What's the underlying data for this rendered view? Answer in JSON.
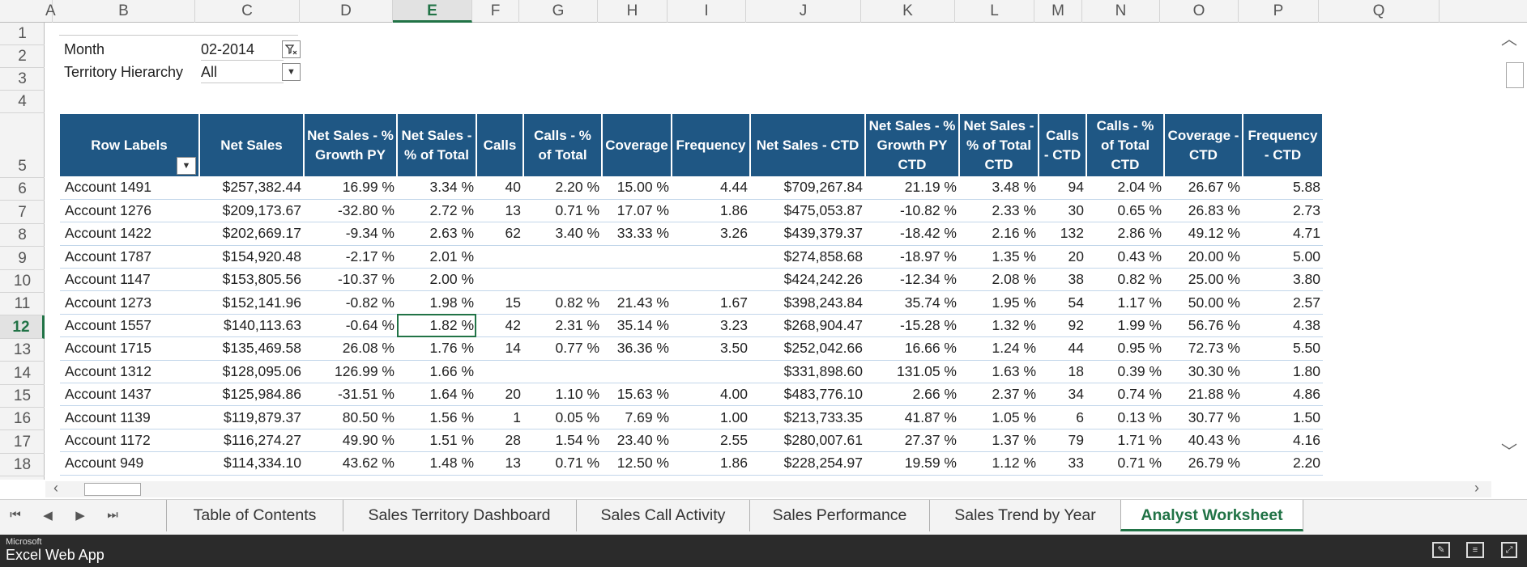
{
  "columns": [
    "A",
    "B",
    "C",
    "D",
    "E",
    "F",
    "G",
    "H",
    "I",
    "J",
    "K",
    "L",
    "M",
    "N",
    "O",
    "P",
    "Q"
  ],
  "selected_column": "E",
  "rows": [
    "1",
    "2",
    "3",
    "4",
    "5",
    "6",
    "7",
    "8",
    "9",
    "10",
    "11",
    "12",
    "13",
    "14",
    "15",
    "16",
    "17",
    "18"
  ],
  "selected_row": "12",
  "filters": [
    {
      "label": "Month",
      "value": "02-2014",
      "button_icon": "filter-funnel-icon"
    },
    {
      "label": "Territory Hierarchy",
      "value": "All",
      "button_icon": "dropdown-arrow-icon"
    }
  ],
  "pivot": {
    "headers": [
      "Row Labels",
      "Net Sales",
      "Net Sales - % Growth PY",
      "Net Sales - % of Total",
      "Calls",
      "Calls - % of Total",
      "Coverage",
      "Frequency",
      "Net Sales - CTD",
      "Net Sales - % Growth PY CTD",
      "Net Sales - % of Total CTD",
      "Calls - CTD",
      "Calls - % of Total CTD",
      "Coverage - CTD",
      "Frequency - CTD"
    ],
    "rows": [
      [
        "Account 1491",
        "$257,382.44",
        "16.99 %",
        "3.34 %",
        "40",
        "2.20 %",
        "15.00 %",
        "4.44",
        "$709,267.84",
        "21.19 %",
        "3.48 %",
        "94",
        "2.04 %",
        "26.67 %",
        "5.88"
      ],
      [
        "Account 1276",
        "$209,173.67",
        "-32.80 %",
        "2.72 %",
        "13",
        "0.71 %",
        "17.07 %",
        "1.86",
        "$475,053.87",
        "-10.82 %",
        "2.33 %",
        "30",
        "0.65 %",
        "26.83 %",
        "2.73"
      ],
      [
        "Account 1422",
        "$202,669.17",
        "-9.34 %",
        "2.63 %",
        "62",
        "3.40 %",
        "33.33 %",
        "3.26",
        "$439,379.37",
        "-18.42 %",
        "2.16 %",
        "132",
        "2.86 %",
        "49.12 %",
        "4.71"
      ],
      [
        "Account 1787",
        "$154,920.48",
        "-2.17 %",
        "2.01 %",
        "",
        "",
        "",
        "",
        "$274,858.68",
        "-18.97 %",
        "1.35 %",
        "20",
        "0.43 %",
        "20.00 %",
        "5.00"
      ],
      [
        "Account 1147",
        "$153,805.56",
        "-10.37 %",
        "2.00 %",
        "",
        "",
        "",
        "",
        "$424,242.26",
        "-12.34 %",
        "2.08 %",
        "38",
        "0.82 %",
        "25.00 %",
        "3.80"
      ],
      [
        "Account 1273",
        "$152,141.96",
        "-0.82 %",
        "1.98 %",
        "15",
        "0.82 %",
        "21.43 %",
        "1.67",
        "$398,243.84",
        "35.74 %",
        "1.95 %",
        "54",
        "1.17 %",
        "50.00 %",
        "2.57"
      ],
      [
        "Account 1557",
        "$140,113.63",
        "-0.64 %",
        "1.82 %",
        "42",
        "2.31 %",
        "35.14 %",
        "3.23",
        "$268,904.47",
        "-15.28 %",
        "1.32 %",
        "92",
        "1.99 %",
        "56.76 %",
        "4.38"
      ],
      [
        "Account 1715",
        "$135,469.58",
        "26.08 %",
        "1.76 %",
        "14",
        "0.77 %",
        "36.36 %",
        "3.50",
        "$252,042.66",
        "16.66 %",
        "1.24 %",
        "44",
        "0.95 %",
        "72.73 %",
        "5.50"
      ],
      [
        "Account 1312",
        "$128,095.06",
        "126.99 %",
        "1.66 %",
        "",
        "",
        "",
        "",
        "$331,898.60",
        "131.05 %",
        "1.63 %",
        "18",
        "0.39 %",
        "30.30 %",
        "1.80"
      ],
      [
        "Account 1437",
        "$125,984.86",
        "-31.51 %",
        "1.64 %",
        "20",
        "1.10 %",
        "15.63 %",
        "4.00",
        "$483,776.10",
        "2.66 %",
        "2.37 %",
        "34",
        "0.74 %",
        "21.88 %",
        "4.86"
      ],
      [
        "Account 1139",
        "$119,879.37",
        "80.50 %",
        "1.56 %",
        "1",
        "0.05 %",
        "7.69 %",
        "1.00",
        "$213,733.35",
        "41.87 %",
        "1.05 %",
        "6",
        "0.13 %",
        "30.77 %",
        "1.50"
      ],
      [
        "Account 1172",
        "$116,274.27",
        "49.90 %",
        "1.51 %",
        "28",
        "1.54 %",
        "23.40 %",
        "2.55",
        "$280,007.61",
        "27.37 %",
        "1.37 %",
        "79",
        "1.71 %",
        "40.43 %",
        "4.16"
      ],
      [
        "Account 949",
        "$114,334.10",
        "43.62 %",
        "1.48 %",
        "13",
        "0.71 %",
        "12.50 %",
        "1.86",
        "$228,254.97",
        "19.59 %",
        "1.12 %",
        "33",
        "0.71 %",
        "26.79 %",
        "2.20"
      ]
    ],
    "active_cell": {
      "row": 6,
      "col": 3
    },
    "header_color": "#1f5784"
  },
  "sheet_tabs": [
    {
      "label": "Table of Contents",
      "active": false
    },
    {
      "label": "Sales Territory Dashboard",
      "active": false
    },
    {
      "label": "Sales Call Activity",
      "active": false
    },
    {
      "label": "Sales Performance",
      "active": false
    },
    {
      "label": "Sales Trend by Year",
      "active": false
    },
    {
      "label": "Analyst Worksheet",
      "active": true
    }
  ],
  "tab_nav": [
    "⏮",
    "◀",
    "▶",
    "⏭"
  ],
  "status": {
    "brand_small": "Microsoft",
    "brand_big": "Excel Web App",
    "icons": [
      "edit-workbook-icon",
      "reading-view-icon",
      "fullscreen-icon"
    ]
  },
  "accent_color": "#217346"
}
